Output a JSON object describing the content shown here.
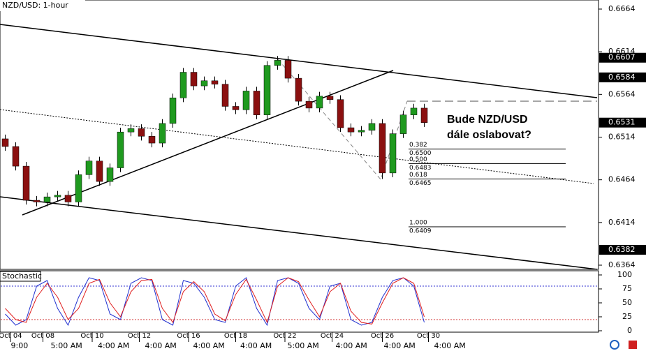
{
  "chart_data": [
    {
      "type": "candlestick",
      "title": "NZD/USD: 1-hour",
      "xlim": [
        -0.5,
        56.5
      ],
      "ylim": [
        0.6364,
        0.6664
      ],
      "yticks": [
        0.6664,
        0.6614,
        0.6564,
        0.6514,
        0.6464,
        0.6414,
        0.6364
      ],
      "price_markers": [
        0.6607,
        0.6584,
        0.6531,
        0.6382
      ],
      "annotation": [
        "Bude NZD/USD",
        "dále oslabovat?"
      ],
      "fib_levels": [
        {
          "ratio": {
            "value": 0.382,
            "label": "0.382"
          },
          "price": {
            "value": 0.65,
            "label": "0.6500"
          }
        },
        {
          "ratio": {
            "value": 0.5,
            "label": "0.500"
          },
          "price": {
            "value": 0.6483,
            "label": "0.6483"
          }
        },
        {
          "ratio": {
            "value": 0.618,
            "label": "0.618"
          },
          "price": {
            "value": 0.6465,
            "label": "0.6465"
          }
        },
        {
          "ratio": {
            "value": 1,
            "label": "1.000"
          },
          "price": {
            "value": 0.6409,
            "label": "0.6409"
          }
        }
      ],
      "up_color": "#1f9a1f",
      "down_color": "#8b1010",
      "open": [
        0.6512,
        0.6503,
        0.648,
        0.644,
        0.6438,
        0.6444,
        0.6446,
        0.6438,
        0.647,
        0.6486,
        0.6462,
        0.6478,
        0.652,
        0.6524,
        0.6515,
        0.6507,
        0.653,
        0.656,
        0.659,
        0.6574,
        0.658,
        0.6576,
        0.655,
        0.6546,
        0.6568,
        0.654,
        0.6598,
        0.6604,
        0.6583,
        0.6556,
        0.6548,
        0.6562,
        0.6558,
        0.6525,
        0.652,
        0.6522,
        0.653,
        0.6472,
        0.6518,
        0.654,
        0.6548
      ],
      "high": [
        0.6517,
        0.6508,
        0.6485,
        0.6445,
        0.6449,
        0.6451,
        0.6451,
        0.6475,
        0.6491,
        0.6491,
        0.6483,
        0.6525,
        0.6529,
        0.6529,
        0.652,
        0.6535,
        0.6565,
        0.6595,
        0.6595,
        0.6585,
        0.6585,
        0.6581,
        0.6555,
        0.6573,
        0.6573,
        0.6603,
        0.6609,
        0.6609,
        0.6588,
        0.6561,
        0.6567,
        0.6567,
        0.6563,
        0.653,
        0.6527,
        0.6535,
        0.6535,
        0.6523,
        0.6545,
        0.6553,
        0.6553
      ],
      "low": [
        0.6498,
        0.6475,
        0.6435,
        0.6433,
        0.6433,
        0.6439,
        0.6433,
        0.6433,
        0.6465,
        0.6457,
        0.6457,
        0.6473,
        0.6515,
        0.651,
        0.6502,
        0.6502,
        0.6525,
        0.6555,
        0.6569,
        0.6569,
        0.6571,
        0.6545,
        0.6541,
        0.6541,
        0.6535,
        0.6535,
        0.6593,
        0.6578,
        0.6551,
        0.6543,
        0.6543,
        0.6553,
        0.652,
        0.6515,
        0.6515,
        0.6517,
        0.6465,
        0.6467,
        0.6513,
        0.6535,
        0.6526
      ],
      "close": [
        0.6503,
        0.648,
        0.644,
        0.6438,
        0.6444,
        0.6446,
        0.6438,
        0.647,
        0.6486,
        0.6462,
        0.6478,
        0.652,
        0.6524,
        0.6515,
        0.6507,
        0.653,
        0.656,
        0.659,
        0.6574,
        0.658,
        0.6576,
        0.655,
        0.6546,
        0.6568,
        0.654,
        0.6598,
        0.6604,
        0.6583,
        0.6556,
        0.6548,
        0.6562,
        0.6558,
        0.6525,
        0.652,
        0.6522,
        0.653,
        0.6472,
        0.6518,
        0.654,
        0.6548,
        0.6531
      ]
    },
    {
      "type": "stochastic",
      "title": "Stochastic",
      "xlim": [
        -0.5,
        56.5
      ],
      "ylim": [
        0,
        100
      ],
      "yticks": [
        100,
        75,
        50,
        25,
        0
      ],
      "levels": [
        80,
        20
      ],
      "level_colors": [
        "#3030d0",
        "#d03030"
      ],
      "series": [
        {
          "color": "#2030d0",
          "values": [
            30,
            10,
            20,
            80,
            90,
            40,
            10,
            60,
            95,
            90,
            30,
            20,
            85,
            95,
            90,
            20,
            10,
            90,
            85,
            60,
            20,
            15,
            80,
            95,
            40,
            10,
            90,
            95,
            85,
            40,
            20,
            80,
            85,
            20,
            10,
            15,
            60,
            90,
            95,
            80,
            15
          ]
        },
        {
          "color": "#e02020",
          "values": [
            40,
            20,
            15,
            60,
            85,
            60,
            20,
            40,
            85,
            92,
            50,
            25,
            70,
            90,
            92,
            40,
            15,
            70,
            88,
            70,
            30,
            18,
            65,
            92,
            55,
            15,
            80,
            95,
            88,
            55,
            25,
            70,
            85,
            35,
            15,
            12,
            50,
            85,
            95,
            85,
            25
          ]
        }
      ],
      "xticks": [
        {
          "value": 0.5,
          "label": "Oct 04"
        },
        {
          "value": 3.6,
          "label": "Oct 08"
        },
        {
          "value": 8.3,
          "label": "Oct 10"
        },
        {
          "value": 12.8,
          "label": "Oct 12"
        },
        {
          "value": 17.5,
          "label": "Oct 16"
        },
        {
          "value": 22,
          "label": "Oct 18"
        },
        {
          "value": 26.7,
          "label": "Oct 22"
        },
        {
          "value": 31.2,
          "label": "Oct 24"
        },
        {
          "value": 36,
          "label": "Oct 26"
        },
        {
          "value": 40.4,
          "label": "Oct 30"
        }
      ],
      "xticks2": [
        {
          "value": 0.4,
          "label": "9:00"
        },
        {
          "value": 4.2,
          "label": "5:00 AM"
        },
        {
          "value": 8.7,
          "label": "4:00 AM"
        },
        {
          "value": 13.2,
          "label": "4:00 AM"
        },
        {
          "value": 17.8,
          "label": "4:00 AM"
        },
        {
          "value": 22.3,
          "label": "4:00 AM"
        },
        {
          "value": 26.8,
          "label": "5:00 AM"
        },
        {
          "value": 31.4,
          "label": "4:00 AM"
        },
        {
          "value": 36,
          "label": "4:00 AM"
        },
        {
          "value": 40.8,
          "label": "4:00 AM"
        }
      ]
    }
  ]
}
